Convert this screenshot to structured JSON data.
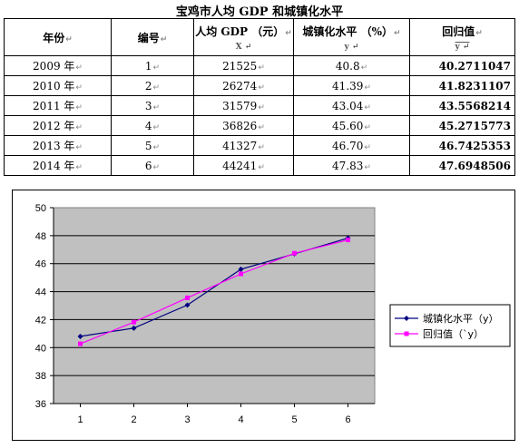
{
  "title": "宝鸡市人均 GDP 和城镇化水平",
  "table": {
    "headers": [
      {
        "label": "年份",
        "sub": ""
      },
      {
        "label": "编号",
        "sub": ""
      },
      {
        "label": "人均 GDP （元）",
        "sub": "X"
      },
      {
        "label": "城镇化水平 （%）",
        "sub": "y"
      },
      {
        "label": "回归值",
        "sub": "y"
      }
    ],
    "rows": [
      {
        "year": "2009 年",
        "index": "1",
        "gdp": "21525",
        "urban": "40.8",
        "fitted": "40.2711047"
      },
      {
        "year": "2010 年",
        "index": "2",
        "gdp": "26274",
        "urban": "41.39",
        "fitted": "41.8231107"
      },
      {
        "year": "2011 年",
        "index": "3",
        "gdp": "31579",
        "urban": "43.04",
        "fitted": "43.5568214"
      },
      {
        "year": "2012 年",
        "index": "4",
        "gdp": "36826",
        "urban": "45.60",
        "fitted": "45.2715773"
      },
      {
        "year": "2013 年",
        "index": "5",
        "gdp": "41327",
        "urban": "46.70",
        "fitted": "46.7425353"
      },
      {
        "year": "2014 年",
        "index": "6",
        "gdp": "44241",
        "urban": "47.83",
        "fitted": "47.6948506"
      }
    ]
  },
  "chart_data": {
    "type": "line",
    "x": [
      1,
      2,
      3,
      4,
      5,
      6
    ],
    "xticks": [
      "1",
      "2",
      "3",
      "4",
      "5",
      "6"
    ],
    "yticks": [
      "36",
      "38",
      "40",
      "42",
      "44",
      "46",
      "48",
      "50"
    ],
    "ylim": [
      36,
      50
    ],
    "grid": true,
    "legend": "right",
    "colors": {
      "plot_bg": "#c0c0c0",
      "series1": "#000080",
      "series2": "#ff00ff"
    },
    "series": [
      {
        "name": "城镇化水平（y）",
        "values": [
          40.8,
          41.39,
          43.04,
          45.6,
          46.7,
          47.83
        ]
      },
      {
        "name": "回归值（`y）",
        "values": [
          40.2711047,
          41.8231107,
          43.5568214,
          45.2715773,
          46.7425353,
          47.6948506
        ]
      }
    ]
  }
}
